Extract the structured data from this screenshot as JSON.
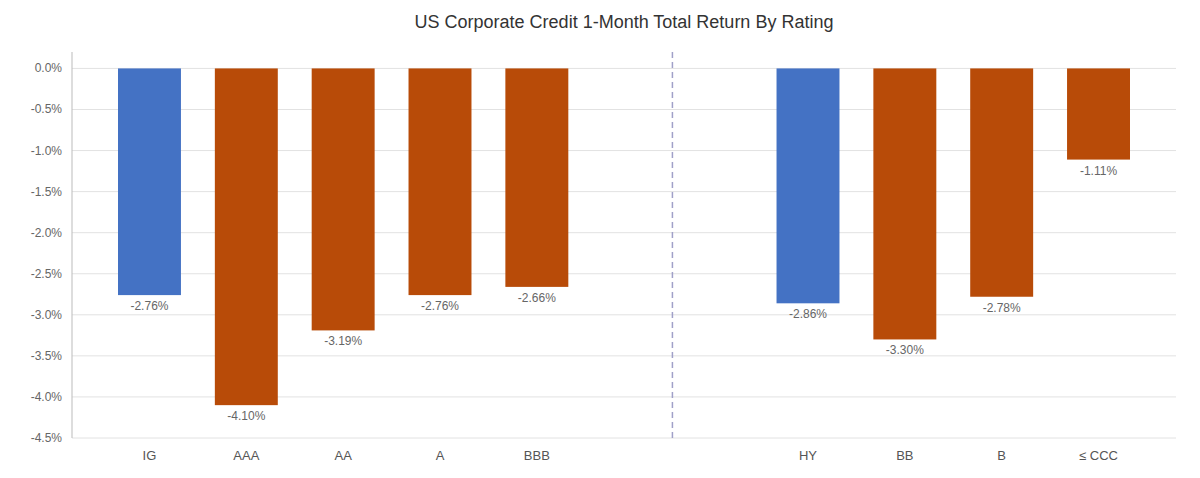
{
  "chart_data": {
    "type": "bar",
    "title": "US Corporate Credit 1-Month Total Return By Rating",
    "categories": [
      "IG",
      "AAA",
      "AA",
      "A",
      "BBB",
      "HY",
      "BB",
      "B",
      "≤ CCC"
    ],
    "values": [
      -2.76,
      -4.1,
      -3.19,
      -2.76,
      -2.66,
      -2.86,
      -3.3,
      -2.78,
      -1.11
    ],
    "value_labels": [
      "-2.76%",
      "-4.10%",
      "-3.19%",
      "-2.76%",
      "-2.66%",
      "-2.86%",
      "-3.30%",
      "-2.78%",
      "-1.11%"
    ],
    "colors": [
      "#4472C4",
      "#B84B08",
      "#B84B08",
      "#B84B08",
      "#B84B08",
      "#4472C4",
      "#B84B08",
      "#B84B08",
      "#B84B08"
    ],
    "data_labels": true,
    "ylim": [
      -4.5,
      0.2
    ],
    "yticks": [
      {
        "value": 0.0,
        "label": "0.0%"
      },
      {
        "value": -0.5,
        "label": "-0.5%"
      },
      {
        "value": -1.0,
        "label": "-1.0%"
      },
      {
        "value": -1.5,
        "label": "-1.5%"
      },
      {
        "value": -2.0,
        "label": "-2.0%"
      },
      {
        "value": -2.5,
        "label": "-2.5%"
      },
      {
        "value": -3.0,
        "label": "-3.0%"
      },
      {
        "value": -3.5,
        "label": "-3.5%"
      },
      {
        "value": -4.0,
        "label": "-4.0%"
      },
      {
        "value": -4.5,
        "label": "-4.5%"
      }
    ],
    "grid": true
  }
}
